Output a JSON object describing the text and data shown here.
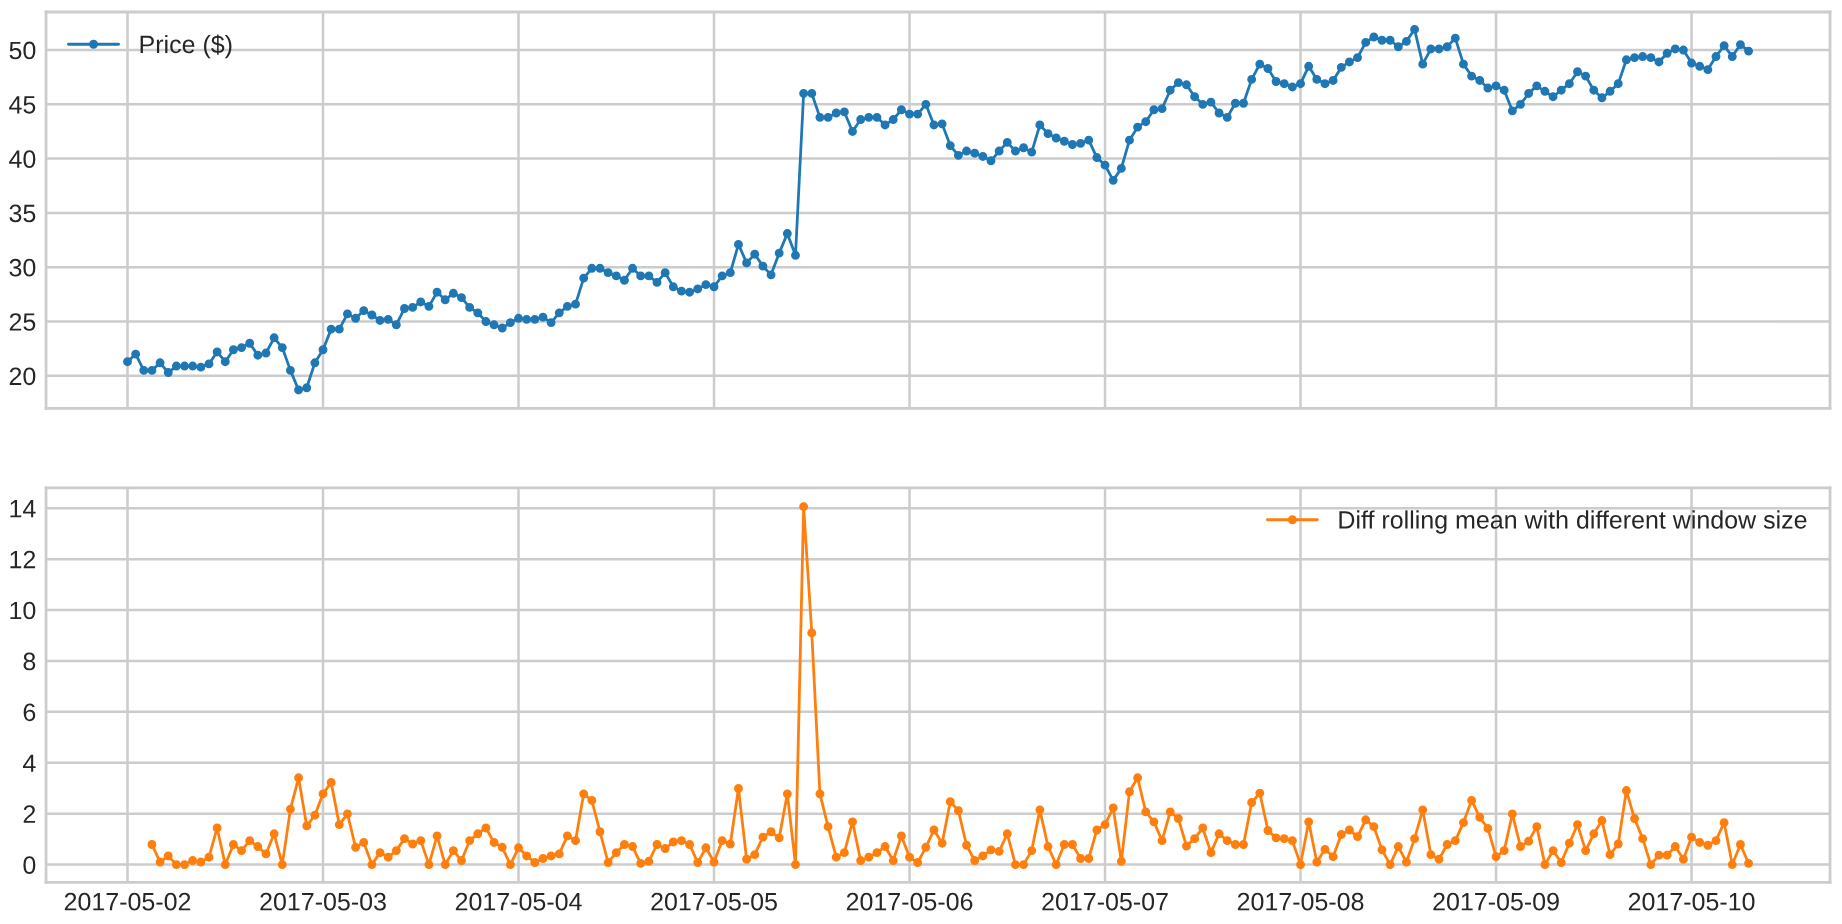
{
  "chart_data": [
    {
      "type": "line",
      "marker": "circle",
      "line_style": "solid",
      "grid": true,
      "legend": "top left",
      "tick_labels": "y",
      "xlim": [
        "2017-05-01T14:00",
        "2017-05-10T17:00"
      ],
      "xticks": [
        "2017-05-02",
        "2017-05-03",
        "2017-05-04",
        "2017-05-05",
        "2017-05-06",
        "2017-05-07",
        "2017-05-08",
        "2017-05-09",
        "2017-05-10"
      ],
      "ylim": [
        17.0,
        53.5
      ],
      "yticks": [
        20,
        25,
        30,
        35,
        40,
        45,
        50
      ],
      "series": [
        {
          "name": "Price ($)",
          "color": "#1f77b4",
          "x": [
            "2017-05-02T00:00",
            "2017-05-02T01:00",
            "2017-05-02T02:00",
            "2017-05-02T03:00",
            "2017-05-02T04:00",
            "2017-05-02T05:00",
            "2017-05-02T06:00",
            "2017-05-02T07:00",
            "2017-05-02T08:00",
            "2017-05-02T09:00",
            "2017-05-02T10:00",
            "2017-05-02T11:00",
            "2017-05-02T12:00",
            "2017-05-02T13:00",
            "2017-05-02T14:00",
            "2017-05-02T15:00",
            "2017-05-02T16:00",
            "2017-05-02T17:00",
            "2017-05-02T18:00",
            "2017-05-02T19:00",
            "2017-05-02T20:00",
            "2017-05-02T21:00",
            "2017-05-02T22:00",
            "2017-05-02T23:00",
            "2017-05-03T00:00",
            "2017-05-03T01:00",
            "2017-05-03T02:00",
            "2017-05-03T03:00",
            "2017-05-03T04:00",
            "2017-05-03T05:00",
            "2017-05-03T06:00",
            "2017-05-03T07:00",
            "2017-05-03T08:00",
            "2017-05-03T09:00",
            "2017-05-03T10:00",
            "2017-05-03T11:00",
            "2017-05-03T12:00",
            "2017-05-03T13:00",
            "2017-05-03T14:00",
            "2017-05-03T15:00",
            "2017-05-03T16:00",
            "2017-05-03T17:00",
            "2017-05-03T18:00",
            "2017-05-03T19:00",
            "2017-05-03T20:00",
            "2017-05-03T21:00",
            "2017-05-03T22:00",
            "2017-05-03T23:00",
            "2017-05-04T00:00",
            "2017-05-04T01:00",
            "2017-05-04T02:00",
            "2017-05-04T03:00",
            "2017-05-04T04:00",
            "2017-05-04T05:00",
            "2017-05-04T06:00",
            "2017-05-04T07:00",
            "2017-05-04T08:00",
            "2017-05-04T09:00",
            "2017-05-04T10:00",
            "2017-05-04T11:00",
            "2017-05-04T12:00",
            "2017-05-04T13:00",
            "2017-05-04T14:00",
            "2017-05-04T15:00",
            "2017-05-04T16:00",
            "2017-05-04T17:00",
            "2017-05-04T18:00",
            "2017-05-04T19:00",
            "2017-05-04T20:00",
            "2017-05-04T21:00",
            "2017-05-04T22:00",
            "2017-05-04T23:00",
            "2017-05-05T00:00",
            "2017-05-05T01:00",
            "2017-05-05T02:00",
            "2017-05-05T03:00",
            "2017-05-05T04:00",
            "2017-05-05T05:00",
            "2017-05-05T06:00",
            "2017-05-05T07:00",
            "2017-05-05T08:00",
            "2017-05-05T09:00",
            "2017-05-05T10:00",
            "2017-05-05T11:00",
            "2017-05-05T12:00",
            "2017-05-05T13:00",
            "2017-05-05T14:00",
            "2017-05-05T15:00",
            "2017-05-05T16:00",
            "2017-05-05T17:00",
            "2017-05-05T18:00",
            "2017-05-05T19:00",
            "2017-05-05T20:00",
            "2017-05-05T21:00",
            "2017-05-05T22:00",
            "2017-05-05T23:00",
            "2017-05-06T00:00",
            "2017-05-06T01:00",
            "2017-05-06T02:00",
            "2017-05-06T03:00",
            "2017-05-06T04:00",
            "2017-05-06T05:00",
            "2017-05-06T06:00",
            "2017-05-06T07:00",
            "2017-05-06T08:00",
            "2017-05-06T09:00",
            "2017-05-06T10:00",
            "2017-05-06T11:00",
            "2017-05-06T12:00",
            "2017-05-06T13:00",
            "2017-05-06T14:00",
            "2017-05-06T15:00",
            "2017-05-06T16:00",
            "2017-05-06T17:00",
            "2017-05-06T18:00",
            "2017-05-06T19:00",
            "2017-05-06T20:00",
            "2017-05-06T21:00",
            "2017-05-06T22:00",
            "2017-05-06T23:00",
            "2017-05-07T00:00",
            "2017-05-07T01:00",
            "2017-05-07T02:00",
            "2017-05-07T03:00",
            "2017-05-07T04:00",
            "2017-05-07T05:00",
            "2017-05-07T06:00",
            "2017-05-07T07:00",
            "2017-05-07T08:00",
            "2017-05-07T09:00",
            "2017-05-07T10:00",
            "2017-05-07T11:00",
            "2017-05-07T12:00",
            "2017-05-07T13:00",
            "2017-05-07T14:00",
            "2017-05-07T15:00",
            "2017-05-07T16:00",
            "2017-05-07T17:00",
            "2017-05-07T18:00",
            "2017-05-07T19:00",
            "2017-05-07T20:00",
            "2017-05-07T21:00",
            "2017-05-07T22:00",
            "2017-05-07T23:00",
            "2017-05-08T00:00",
            "2017-05-08T01:00",
            "2017-05-08T02:00",
            "2017-05-08T03:00",
            "2017-05-08T04:00",
            "2017-05-08T05:00",
            "2017-05-08T06:00",
            "2017-05-08T07:00",
            "2017-05-08T08:00",
            "2017-05-08T09:00",
            "2017-05-08T10:00",
            "2017-05-08T11:00",
            "2017-05-08T12:00",
            "2017-05-08T13:00",
            "2017-05-08T14:00",
            "2017-05-08T15:00",
            "2017-05-08T16:00",
            "2017-05-08T17:00",
            "2017-05-08T18:00",
            "2017-05-08T19:00",
            "2017-05-08T20:00",
            "2017-05-08T21:00",
            "2017-05-08T22:00",
            "2017-05-08T23:00",
            "2017-05-09T00:00",
            "2017-05-09T01:00",
            "2017-05-09T02:00",
            "2017-05-09T03:00",
            "2017-05-09T04:00",
            "2017-05-09T05:00",
            "2017-05-09T06:00",
            "2017-05-09T07:00",
            "2017-05-09T08:00",
            "2017-05-09T09:00",
            "2017-05-09T10:00",
            "2017-05-09T11:00",
            "2017-05-09T12:00",
            "2017-05-09T13:00",
            "2017-05-09T14:00",
            "2017-05-09T15:00",
            "2017-05-09T16:00",
            "2017-05-09T17:00",
            "2017-05-09T18:00",
            "2017-05-09T19:00",
            "2017-05-09T20:00",
            "2017-05-09T21:00",
            "2017-05-09T22:00",
            "2017-05-09T23:00",
            "2017-05-10T00:00",
            "2017-05-10T01:00",
            "2017-05-10T02:00",
            "2017-05-10T03:00",
            "2017-05-10T04:00",
            "2017-05-10T05:00",
            "2017-05-10T06:00",
            "2017-05-10T07:00"
          ],
          "values": [
            21.3,
            22.0,
            20.5,
            20.5,
            21.2,
            20.3,
            20.9,
            20.9,
            20.9,
            20.8,
            21.1,
            22.2,
            21.3,
            22.4,
            22.6,
            23.0,
            21.9,
            22.1,
            23.5,
            22.6,
            20.5,
            18.7,
            18.9,
            21.2,
            22.4,
            24.3,
            24.3,
            25.7,
            25.3,
            26.0,
            25.6,
            25.1,
            25.2,
            24.7,
            26.2,
            26.3,
            26.8,
            26.4,
            27.7,
            27.0,
            27.6,
            27.2,
            26.3,
            25.8,
            25.0,
            24.7,
            24.4,
            24.9,
            25.3,
            25.2,
            25.2,
            25.4,
            24.9,
            25.8,
            26.4,
            26.6,
            29.0,
            29.9,
            29.9,
            29.5,
            29.2,
            28.8,
            29.9,
            29.2,
            29.2,
            28.6,
            29.5,
            28.2,
            27.8,
            27.7,
            28.0,
            28.4,
            28.2,
            29.2,
            29.5,
            32.1,
            30.4,
            31.2,
            30.1,
            29.3,
            31.3,
            33.1,
            31.1,
            46.0,
            46.0,
            43.8,
            43.8,
            44.2,
            44.3,
            42.5,
            43.6,
            43.8,
            43.8,
            43.1,
            43.6,
            44.5,
            44.1,
            44.1,
            45.0,
            43.1,
            43.2,
            41.2,
            40.3,
            40.7,
            40.5,
            40.2,
            39.8,
            40.7,
            41.5,
            40.7,
            41.0,
            40.6,
            43.1,
            42.3,
            41.9,
            41.6,
            41.3,
            41.4,
            41.7,
            40.1,
            39.4,
            38.0,
            39.1,
            41.7,
            42.9,
            43.4,
            44.5,
            44.6,
            46.3,
            47.0,
            46.8,
            45.7,
            45.0,
            45.2,
            44.2,
            43.8,
            45.1,
            45.1,
            47.3,
            48.7,
            48.3,
            47.1,
            46.9,
            46.6,
            46.9,
            48.5,
            47.3,
            46.9,
            47.2,
            48.4,
            48.9,
            49.3,
            50.7,
            51.2,
            50.9,
            50.9,
            50.3,
            50.8,
            51.9,
            48.7,
            50.1,
            50.1,
            50.3,
            51.1,
            48.7,
            47.6,
            47.2,
            46.5,
            46.7,
            46.3,
            44.4,
            45.0,
            46.0,
            46.7,
            46.2,
            45.7,
            46.3,
            46.9,
            48.0,
            47.6,
            46.3,
            45.6,
            46.2,
            46.9,
            49.1,
            49.3,
            49.4,
            49.3,
            48.9,
            49.7,
            50.1,
            50.0,
            48.8,
            48.5,
            48.2,
            49.4,
            50.4,
            49.4,
            50.5,
            49.9
          ]
        }
      ]
    },
    {
      "type": "line",
      "marker": "circle",
      "line_style": "solid",
      "grid": true,
      "legend": "top right",
      "xlim": [
        "2017-05-01T14:00",
        "2017-05-10T17:00"
      ],
      "xticks": [
        "2017-05-02",
        "2017-05-03",
        "2017-05-04",
        "2017-05-05",
        "2017-05-06",
        "2017-05-07",
        "2017-05-08",
        "2017-05-09",
        "2017-05-10"
      ],
      "ylim": [
        -0.7,
        14.8
      ],
      "yticks": [
        0,
        2,
        4,
        6,
        8,
        10,
        12,
        14
      ],
      "series": [
        {
          "name": "Diff rolling mean with different window size",
          "color": "#ff7f0e",
          "x": [
            "2017-05-02T03:00",
            "2017-05-02T04:00",
            "2017-05-02T05:00",
            "2017-05-02T06:00",
            "2017-05-02T07:00",
            "2017-05-02T08:00",
            "2017-05-02T09:00",
            "2017-05-02T10:00",
            "2017-05-02T11:00",
            "2017-05-02T12:00",
            "2017-05-02T13:00",
            "2017-05-02T14:00",
            "2017-05-02T15:00",
            "2017-05-02T16:00",
            "2017-05-02T17:00",
            "2017-05-02T18:00",
            "2017-05-02T19:00",
            "2017-05-02T20:00",
            "2017-05-02T21:00",
            "2017-05-02T22:00",
            "2017-05-02T23:00",
            "2017-05-03T00:00",
            "2017-05-03T01:00",
            "2017-05-03T02:00",
            "2017-05-03T03:00",
            "2017-05-03T04:00",
            "2017-05-03T05:00",
            "2017-05-03T06:00",
            "2017-05-03T07:00",
            "2017-05-03T08:00",
            "2017-05-03T09:00",
            "2017-05-03T10:00",
            "2017-05-03T11:00",
            "2017-05-03T12:00",
            "2017-05-03T13:00",
            "2017-05-03T14:00",
            "2017-05-03T15:00",
            "2017-05-03T16:00",
            "2017-05-03T17:00",
            "2017-05-03T18:00",
            "2017-05-03T19:00",
            "2017-05-03T20:00",
            "2017-05-03T21:00",
            "2017-05-03T22:00",
            "2017-05-03T23:00",
            "2017-05-04T00:00",
            "2017-05-04T01:00",
            "2017-05-04T02:00",
            "2017-05-04T03:00",
            "2017-05-04T04:00",
            "2017-05-04T05:00",
            "2017-05-04T06:00",
            "2017-05-04T07:00",
            "2017-05-04T08:00",
            "2017-05-04T09:00",
            "2017-05-04T10:00",
            "2017-05-04T11:00",
            "2017-05-04T12:00",
            "2017-05-04T13:00",
            "2017-05-04T14:00",
            "2017-05-04T15:00",
            "2017-05-04T16:00",
            "2017-05-04T17:00",
            "2017-05-04T18:00",
            "2017-05-04T19:00",
            "2017-05-04T20:00",
            "2017-05-04T21:00",
            "2017-05-04T22:00",
            "2017-05-04T23:00",
            "2017-05-05T00:00",
            "2017-05-05T01:00",
            "2017-05-05T02:00",
            "2017-05-05T03:00",
            "2017-05-05T04:00",
            "2017-05-05T05:00",
            "2017-05-05T06:00",
            "2017-05-05T07:00",
            "2017-05-05T08:00",
            "2017-05-05T09:00",
            "2017-05-05T10:00",
            "2017-05-05T11:00",
            "2017-05-05T12:00",
            "2017-05-05T13:00",
            "2017-05-05T14:00",
            "2017-05-05T15:00",
            "2017-05-05T16:00",
            "2017-05-05T17:00",
            "2017-05-05T18:00",
            "2017-05-05T19:00",
            "2017-05-05T20:00",
            "2017-05-05T21:00",
            "2017-05-05T22:00",
            "2017-05-05T23:00",
            "2017-05-06T00:00",
            "2017-05-06T01:00",
            "2017-05-06T02:00",
            "2017-05-06T03:00",
            "2017-05-06T04:00",
            "2017-05-06T05:00",
            "2017-05-06T06:00",
            "2017-05-06T07:00",
            "2017-05-06T08:00",
            "2017-05-06T09:00",
            "2017-05-06T10:00",
            "2017-05-06T11:00",
            "2017-05-06T12:00",
            "2017-05-06T13:00",
            "2017-05-06T14:00",
            "2017-05-06T15:00",
            "2017-05-06T16:00",
            "2017-05-06T17:00",
            "2017-05-06T18:00",
            "2017-05-06T19:00",
            "2017-05-06T20:00",
            "2017-05-06T21:00",
            "2017-05-06T22:00",
            "2017-05-06T23:00",
            "2017-05-07T00:00",
            "2017-05-07T01:00",
            "2017-05-07T02:00",
            "2017-05-07T03:00",
            "2017-05-07T04:00",
            "2017-05-07T05:00",
            "2017-05-07T06:00",
            "2017-05-07T07:00",
            "2017-05-07T08:00",
            "2017-05-07T09:00",
            "2017-05-07T10:00",
            "2017-05-07T11:00",
            "2017-05-07T12:00",
            "2017-05-07T13:00",
            "2017-05-07T14:00",
            "2017-05-07T15:00",
            "2017-05-07T16:00",
            "2017-05-07T17:00",
            "2017-05-07T18:00",
            "2017-05-07T19:00",
            "2017-05-07T20:00",
            "2017-05-07T21:00",
            "2017-05-07T22:00",
            "2017-05-07T23:00",
            "2017-05-08T00:00",
            "2017-05-08T01:00",
            "2017-05-08T02:00",
            "2017-05-08T03:00",
            "2017-05-08T04:00",
            "2017-05-08T05:00",
            "2017-05-08T06:00",
            "2017-05-08T07:00",
            "2017-05-08T08:00",
            "2017-05-08T09:00",
            "2017-05-08T10:00",
            "2017-05-08T11:00",
            "2017-05-08T12:00",
            "2017-05-08T13:00",
            "2017-05-08T14:00",
            "2017-05-08T15:00",
            "2017-05-08T16:00",
            "2017-05-08T17:00",
            "2017-05-08T18:00",
            "2017-05-08T19:00",
            "2017-05-08T20:00",
            "2017-05-08T21:00",
            "2017-05-08T22:00",
            "2017-05-08T23:00",
            "2017-05-09T00:00",
            "2017-05-09T01:00",
            "2017-05-09T02:00",
            "2017-05-09T03:00",
            "2017-05-09T04:00",
            "2017-05-09T05:00",
            "2017-05-09T06:00",
            "2017-05-09T07:00",
            "2017-05-09T08:00",
            "2017-05-09T09:00",
            "2017-05-09T10:00",
            "2017-05-09T11:00",
            "2017-05-09T12:00",
            "2017-05-09T13:00",
            "2017-05-09T14:00",
            "2017-05-09T15:00",
            "2017-05-09T16:00",
            "2017-05-09T17:00",
            "2017-05-09T18:00",
            "2017-05-09T19:00",
            "2017-05-09T20:00",
            "2017-05-09T21:00",
            "2017-05-09T22:00",
            "2017-05-09T23:00",
            "2017-05-10T00:00",
            "2017-05-10T01:00",
            "2017-05-10T02:00",
            "2017-05-10T03:00",
            "2017-05-10T04:00",
            "2017-05-10T05:00",
            "2017-05-10T06:00",
            "2017-05-10T07:00"
          ],
          "values": [
            0.79,
            0.1,
            0.34,
            0.0,
            0.0,
            0.16,
            0.1,
            0.29,
            1.44,
            0.0,
            0.79,
            0.55,
            0.94,
            0.71,
            0.42,
            1.21,
            0.0,
            2.18,
            3.41,
            1.52,
            1.94,
            2.78,
            3.23,
            1.57,
            1.99,
            0.68,
            0.87,
            0.0,
            0.47,
            0.29,
            0.55,
            1.02,
            0.81,
            0.94,
            0.0,
            1.13,
            0.0,
            0.55,
            0.16,
            0.94,
            1.21,
            1.44,
            0.87,
            0.68,
            0.0,
            0.66,
            0.34,
            0.08,
            0.24,
            0.34,
            0.42,
            1.13,
            0.94,
            2.78,
            2.52,
            1.29,
            0.08,
            0.47,
            0.79,
            0.71,
            0.05,
            0.13,
            0.79,
            0.63,
            0.89,
            0.94,
            0.79,
            0.08,
            0.66,
            0.1,
            0.94,
            0.81,
            2.99,
            0.21,
            0.39,
            1.08,
            1.29,
            1.05,
            2.78,
            0.0,
            14.06,
            9.1,
            2.78,
            1.49,
            0.29,
            0.47,
            1.68,
            0.16,
            0.29,
            0.47,
            0.71,
            0.16,
            1.13,
            0.29,
            0.08,
            0.68,
            1.36,
            0.84,
            2.47,
            2.12,
            0.76,
            0.16,
            0.34,
            0.58,
            0.52,
            1.21,
            0.0,
            0.0,
            0.55,
            2.15,
            0.71,
            0.0,
            0.79,
            0.79,
            0.24,
            0.24,
            1.36,
            1.57,
            2.23,
            0.13,
            2.86,
            3.41,
            2.07,
            1.68,
            0.94,
            2.07,
            1.81,
            0.73,
            1.02,
            1.44,
            0.47,
            1.21,
            0.94,
            0.79,
            0.79,
            2.44,
            2.81,
            1.34,
            1.05,
            1.02,
            0.94,
            0.0,
            1.68,
            0.1,
            0.6,
            0.31,
            1.18,
            1.36,
            1.1,
            1.76,
            1.49,
            0.58,
            0.0,
            0.71,
            0.1,
            1.02,
            2.15,
            0.39,
            0.21,
            0.79,
            0.94,
            1.65,
            2.52,
            1.86,
            1.42,
            0.31,
            0.55,
            1.99,
            0.71,
            0.92,
            1.49,
            0.0,
            0.55,
            0.08,
            0.84,
            1.57,
            0.55,
            1.21,
            1.73,
            0.39,
            0.81,
            2.91,
            1.81,
            1.02,
            0.0,
            0.37,
            0.37,
            0.71,
            0.21,
            1.08,
            0.87,
            0.76,
            0.94,
            1.65,
            0.0,
            0.79,
            0.05
          ]
        }
      ]
    }
  ]
}
